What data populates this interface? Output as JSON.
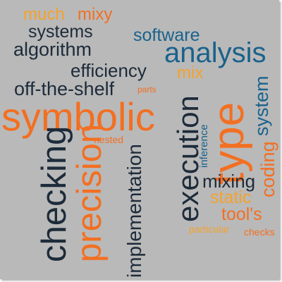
{
  "palette": {
    "background": "#b9b9b9",
    "navy": "#1d2b3a",
    "blue": "#1a628c",
    "orange": "#f36f21",
    "amber": "#f4a22b"
  },
  "words": {
    "much": "much",
    "mixy": "mixy",
    "systems": "systems",
    "algorithm": "algorithm",
    "software": "software",
    "analysis": "analysis",
    "efficiency": "efficiency",
    "mix": "mix",
    "off_the_shelf": "off-the-shelf",
    "parts": "parts",
    "symbolic": "symbolic",
    "type": "type",
    "execution": "execution",
    "system": "system",
    "inference": "inference",
    "nested": "nested",
    "checking": "checking",
    "precision": "precision",
    "implementation": "implementation",
    "mixing": "mixing",
    "coding": "coding",
    "static": "static",
    "tools": "tool's",
    "particular": "particular",
    "checks": "checks"
  }
}
